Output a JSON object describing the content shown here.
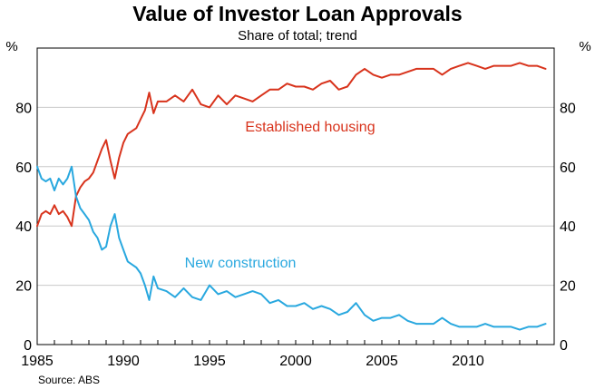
{
  "chart_data": {
    "type": "line",
    "title": "Value of Investor Loan Approvals",
    "subtitle": "Share of total; trend",
    "ylabel_left": "%",
    "ylabel_right": "%",
    "ylim": [
      0,
      100
    ],
    "xlim": [
      1985,
      2015
    ],
    "y_ticks": [
      0,
      20,
      40,
      60,
      80
    ],
    "x_ticks": [
      1985,
      1990,
      1995,
      2000,
      2005,
      2010
    ],
    "grid": "horizontal",
    "source": "Source: ABS",
    "series": [
      {
        "name": "Established housing",
        "color": "#d8331c",
        "x": [
          1985.0,
          1985.25,
          1985.5,
          1985.75,
          1986.0,
          1986.25,
          1986.5,
          1986.75,
          1987.0,
          1987.25,
          1987.5,
          1987.75,
          1988.0,
          1988.25,
          1988.5,
          1988.75,
          1989.0,
          1989.25,
          1989.5,
          1989.75,
          1990.0,
          1990.25,
          1990.5,
          1990.75,
          1991.0,
          1991.25,
          1991.5,
          1991.75,
          1992.0,
          1992.5,
          1993.0,
          1993.5,
          1994.0,
          1994.5,
          1995.0,
          1995.5,
          1996.0,
          1996.5,
          1997.0,
          1997.5,
          1998.0,
          1998.5,
          1999.0,
          1999.5,
          2000.0,
          2000.5,
          2001.0,
          2001.5,
          2002.0,
          2002.5,
          2003.0,
          2003.5,
          2004.0,
          2004.5,
          2005.0,
          2005.5,
          2006.0,
          2006.5,
          2007.0,
          2007.5,
          2008.0,
          2008.5,
          2009.0,
          2009.5,
          2010.0,
          2010.5,
          2011.0,
          2011.5,
          2012.0,
          2012.5,
          2013.0,
          2013.5,
          2014.0,
          2014.5
        ],
        "values": [
          40,
          44,
          45,
          44,
          47,
          44,
          45,
          43,
          40,
          50,
          53,
          55,
          56,
          58,
          62,
          66,
          69,
          62,
          56,
          63,
          68,
          71,
          72,
          73,
          76,
          79,
          85,
          78,
          82,
          82,
          84,
          82,
          86,
          81,
          80,
          84,
          81,
          84,
          83,
          82,
          84,
          86,
          86,
          88,
          87,
          87,
          86,
          88,
          89,
          86,
          87,
          91,
          93,
          91,
          90,
          91,
          91,
          92,
          93,
          93,
          93,
          91,
          93,
          94,
          95,
          94,
          93,
          94,
          94,
          94,
          95,
          94,
          94,
          93
        ]
      },
      {
        "name": "New construction",
        "color": "#29a8df",
        "x": [
          1985.0,
          1985.25,
          1985.5,
          1985.75,
          1986.0,
          1986.25,
          1986.5,
          1986.75,
          1987.0,
          1987.25,
          1987.5,
          1987.75,
          1988.0,
          1988.25,
          1988.5,
          1988.75,
          1989.0,
          1989.25,
          1989.5,
          1989.75,
          1990.0,
          1990.25,
          1990.5,
          1990.75,
          1991.0,
          1991.25,
          1991.5,
          1991.75,
          1992.0,
          1992.5,
          1993.0,
          1993.5,
          1994.0,
          1994.5,
          1995.0,
          1995.5,
          1996.0,
          1996.5,
          1997.0,
          1997.5,
          1998.0,
          1998.5,
          1999.0,
          1999.5,
          2000.0,
          2000.5,
          2001.0,
          2001.5,
          2002.0,
          2002.5,
          2003.0,
          2003.5,
          2004.0,
          2004.5,
          2005.0,
          2005.5,
          2006.0,
          2006.5,
          2007.0,
          2007.5,
          2008.0,
          2008.5,
          2009.0,
          2009.5,
          2010.0,
          2010.5,
          2011.0,
          2011.5,
          2012.0,
          2012.5,
          2013.0,
          2013.5,
          2014.0,
          2014.5
        ],
        "values": [
          60,
          56,
          55,
          56,
          52,
          56,
          54,
          56,
          60,
          50,
          46,
          44,
          42,
          38,
          36,
          32,
          33,
          40,
          44,
          36,
          32,
          28,
          27,
          26,
          24,
          20,
          15,
          23,
          19,
          18,
          16,
          19,
          16,
          15,
          20,
          17,
          18,
          16,
          17,
          18,
          17,
          14,
          15,
          13,
          13,
          14,
          12,
          13,
          12,
          10,
          11,
          14,
          10,
          8,
          9,
          9,
          10,
          8,
          7,
          7,
          7,
          9,
          7,
          6,
          6,
          6,
          7,
          6,
          6,
          6,
          5,
          6,
          6,
          7
        ]
      }
    ]
  }
}
